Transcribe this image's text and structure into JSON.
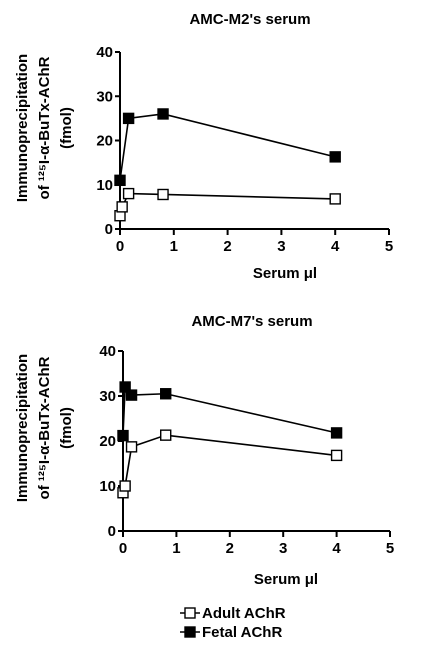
{
  "chart_data": [
    {
      "type": "line",
      "title": "AMC-M2's serum",
      "xlabel": "Serum μl",
      "ylabel_lines": [
        "Immunoprecipitation",
        "of ¹²⁵I-α-BuTx-AChR",
        "(fmol)"
      ],
      "xlim": [
        0,
        5
      ],
      "ylim": [
        0,
        40
      ],
      "xticks": [
        "0",
        "1",
        "2",
        "3",
        "4",
        "5"
      ],
      "yticks": [
        "0",
        "10",
        "20",
        "30",
        "40"
      ],
      "series": [
        {
          "name": "Adult AChR",
          "marker": "open-square",
          "x": [
            0,
            0.04,
            0.16,
            0.8,
            4
          ],
          "y": [
            3,
            5,
            8,
            7.8,
            6.8
          ]
        },
        {
          "name": "Fetal AChR",
          "marker": "filled-square",
          "x": [
            0,
            0.16,
            0.8,
            4
          ],
          "y": [
            11,
            25,
            26,
            16.3
          ]
        }
      ]
    },
    {
      "type": "line",
      "title": "AMC-M7's serum",
      "xlabel": "Serum μl",
      "ylabel_lines": [
        "Immunoprecipitation",
        "of ¹²⁵I-α-BuTx-AChR",
        "(fmol)"
      ],
      "xlim": [
        0,
        5
      ],
      "ylim": [
        0,
        40
      ],
      "xticks": [
        "0",
        "1",
        "2",
        "3",
        "4",
        "5"
      ],
      "yticks": [
        "0",
        "10",
        "20",
        "30",
        "40"
      ],
      "series": [
        {
          "name": "Adult AChR",
          "marker": "open-square",
          "x": [
            0,
            0.04,
            0.16,
            0.8,
            4
          ],
          "y": [
            8.5,
            10,
            18.7,
            21.3,
            16.8
          ]
        },
        {
          "name": "Fetal AChR",
          "marker": "filled-square",
          "x": [
            0,
            0.04,
            0.16,
            0.8,
            4
          ],
          "y": [
            21.2,
            32,
            30.2,
            30.5,
            21.8
          ]
        }
      ]
    }
  ],
  "legend": {
    "items": [
      {
        "label": "Adult AChR",
        "marker": "open-square"
      },
      {
        "label": "Fetal AChR",
        "marker": "filled-square"
      }
    ]
  }
}
